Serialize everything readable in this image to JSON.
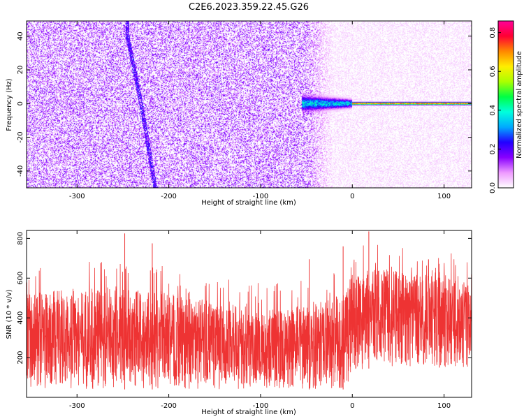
{
  "figure_title": "C2E6.2023.359.22.45.G26",
  "chart_data": [
    {
      "type": "heatmap",
      "title": "",
      "xlabel": "Height of straight line (km)",
      "ylabel": "Frequency (Hz)",
      "xlim": [
        -355,
        130
      ],
      "ylim": [
        -50,
        49
      ],
      "xticks": [
        -300,
        -200,
        -100,
        0,
        100
      ],
      "yticks": [
        40,
        20,
        0,
        -20,
        -40
      ],
      "grid": false,
      "background_noise": {
        "left_region": [
          -355,
          -50
        ],
        "left_level": 0.12,
        "right_region": [
          -20,
          130
        ],
        "right_level": 0.03
      },
      "features": [
        {
          "kind": "frequency-ridge",
          "x": [
            -245,
            -230,
            -215
          ],
          "y": [
            40,
            0,
            -49
          ],
          "amplitude": 0.22
        },
        {
          "kind": "carrier-line",
          "x_start": -55,
          "x_end": 130,
          "y": 0,
          "amplitude": 0.8
        }
      ],
      "colorbar": {
        "label": "Normalized spectral amplitude",
        "range": [
          0.0,
          0.86
        ],
        "ticks": [
          0.0,
          0.2,
          0.4,
          0.6,
          0.8
        ],
        "colors": [
          "#ffffff",
          "#ee99ff",
          "#8800ff",
          "#2200ff",
          "#00aaff",
          "#00ffdd",
          "#00ff44",
          "#aaff00",
          "#ffee00",
          "#ff8800",
          "#ff0033",
          "#ff0099"
        ]
      }
    },
    {
      "type": "line",
      "title": "",
      "xlabel": "Height of straight line (km)",
      "ylabel": "SNR (10 * v/v)",
      "xlim": [
        -355,
        130
      ],
      "ylim": [
        0,
        840
      ],
      "xticks": [
        -300,
        -200,
        -100,
        0,
        100
      ],
      "yticks": [
        200,
        400,
        600,
        800
      ],
      "grid": false,
      "color": "#ee3333",
      "envelope": {
        "x": [
          -355,
          -300,
          -250,
          -200,
          -150,
          -100,
          -50,
          -10,
          0,
          20,
          50,
          100,
          130
        ],
        "lo": [
          40,
          40,
          40,
          40,
          40,
          40,
          40,
          40,
          100,
          150,
          150,
          150,
          150
        ],
        "hi": [
          520,
          550,
          560,
          530,
          470,
          450,
          460,
          520,
          620,
          650,
          640,
          600,
          580
        ]
      },
      "spikes": [
        {
          "x": -248,
          "y": 825
        },
        {
          "x": -218,
          "y": 775
        },
        {
          "x": -47,
          "y": 695
        },
        {
          "x": -10,
          "y": 760
        },
        {
          "x": 18,
          "y": 835
        },
        {
          "x": 95,
          "y": 630
        }
      ]
    }
  ]
}
